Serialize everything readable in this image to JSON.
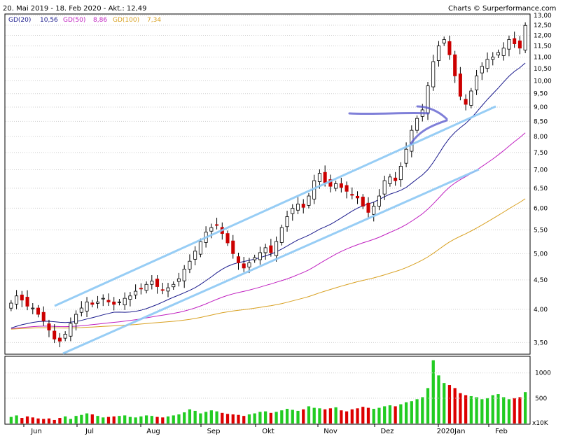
{
  "header": {
    "range": "20. Mai 2019 - 18. Feb 2020 - Akt.: 12,49",
    "credit": "Charts © Surperformance.com"
  },
  "legend": [
    {
      "label": "GD(20)",
      "value": "10,56",
      "color": "#1a1a8c"
    },
    {
      "label": "GD(50)",
      "value": "8,86",
      "color": "#c020c0"
    },
    {
      "label": "GD(100)",
      "value": "7,34",
      "color": "#d8a020"
    }
  ],
  "colors": {
    "up": "#ffffff",
    "down": "#cc0000",
    "vol_up": "#22cc22",
    "vol_down": "#dd0000",
    "trendline": "#66b8f0",
    "arrow": "#4444cc",
    "grid": "#cfcfcf"
  },
  "chart_data": [
    {
      "type": "candlestick",
      "title": "",
      "yscale": "log",
      "ylim": [
        3.35,
        13.0
      ],
      "y_ticks": [
        "3,50",
        "4,00",
        "4,50",
        "5,00",
        "5,50",
        "6,00",
        "6,50",
        "7,00",
        "7,50",
        "8,00",
        "8,50",
        "9,00",
        "9,50",
        "10,00",
        "10,50",
        "11,00",
        "11,50",
        "12,00",
        "12,50",
        "13,00"
      ],
      "x_labels": [
        "Jun",
        "Jul",
        "Aug",
        "Sep",
        "Okt",
        "Nov",
        "Dez",
        "2020Jan",
        "Feb"
      ],
      "close_series": [
        4.1,
        4.22,
        4.15,
        4.05,
        4.02,
        3.92,
        3.82,
        3.68,
        3.55,
        3.52,
        3.62,
        3.78,
        3.92,
        4.02,
        4.12,
        4.08,
        4.12,
        4.18,
        4.12,
        4.08,
        4.12,
        4.18,
        4.22,
        4.3,
        4.35,
        4.42,
        4.48,
        4.38,
        4.32,
        4.36,
        4.42,
        4.52,
        4.7,
        4.85,
        5.05,
        5.25,
        5.45,
        5.55,
        5.6,
        5.42,
        5.22,
        5.0,
        4.82,
        4.72,
        4.82,
        4.92,
        5.02,
        5.12,
        5.02,
        5.25,
        5.55,
        5.8,
        6.0,
        6.1,
        6.02,
        6.3,
        6.7,
        6.9,
        6.65,
        6.55,
        6.62,
        6.52,
        6.42,
        6.32,
        6.25,
        6.05,
        5.9,
        6.05,
        6.3,
        6.7,
        6.8,
        6.7,
        7.1,
        7.6,
        8.2,
        8.6,
        8.9,
        9.8,
        10.8,
        11.5,
        11.8,
        11.1,
        10.2,
        9.4,
        9.1,
        9.6,
        10.2,
        10.6,
        10.9,
        11.0,
        11.2,
        11.4,
        11.8,
        11.6,
        11.4,
        12.49
      ],
      "volume_ticks": [
        "500",
        "1000"
      ],
      "volume_unit": "x10K",
      "volume_range": [
        0,
        1300
      ],
      "volume_series": [
        130,
        160,
        110,
        140,
        120,
        100,
        90,
        100,
        70,
        110,
        140,
        90,
        150,
        170,
        200,
        180,
        150,
        120,
        130,
        140,
        150,
        160,
        130,
        120,
        140,
        160,
        150,
        130,
        120,
        140,
        160,
        180,
        220,
        280,
        250,
        200,
        230,
        260,
        240,
        210,
        190,
        180,
        170,
        150,
        180,
        200,
        230,
        240,
        210,
        230,
        260,
        290,
        270,
        250,
        280,
        340,
        310,
        300,
        280,
        300,
        320,
        260,
        240,
        280,
        300,
        330,
        310,
        290,
        310,
        340,
        360,
        340,
        380,
        420,
        440,
        480,
        520,
        700,
        1250,
        950,
        800,
        760,
        700,
        600,
        560,
        540,
        520,
        480,
        500,
        560,
        580,
        520,
        480,
        500,
        520,
        620
      ],
      "series": [
        {
          "name": "GD(20)",
          "end_value": 10.56
        },
        {
          "name": "GD(50)",
          "end_value": 8.86
        },
        {
          "name": "GD(100)",
          "end_value": 7.34
        }
      ]
    }
  ]
}
